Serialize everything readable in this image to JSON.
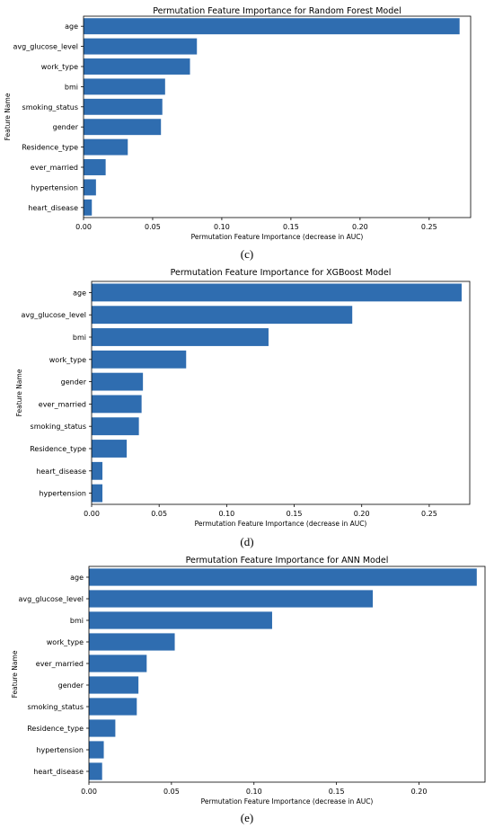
{
  "chart_data": [
    {
      "type": "bar",
      "orientation": "horizontal",
      "panel_label": "(c)",
      "title": "Permutation Feature Importance for Random Forest Model",
      "xlabel": "Permutation Feature Importance (decrease in AUC)",
      "ylabel": "Feature Name",
      "categories": [
        "age",
        "avg_glucose_level",
        "work_type",
        "bmi",
        "smoking_status",
        "gender",
        "Residence_type",
        "ever_married",
        "hypertension",
        "heart_disease"
      ],
      "values": [
        0.272,
        0.082,
        0.077,
        0.059,
        0.057,
        0.056,
        0.032,
        0.016,
        0.009,
        0.006
      ],
      "xlim": [
        0,
        0.28
      ],
      "xticks": [
        "0.00",
        "0.05",
        "0.10",
        "0.15",
        "0.20",
        "0.25"
      ],
      "bar_color": "#2f6db0",
      "grid": false
    },
    {
      "type": "bar",
      "orientation": "horizontal",
      "panel_label": "(d)",
      "title": "Permutation Feature Importance for XGBoost Model",
      "xlabel": "Permutation Feature Importance (decrease in AUC)",
      "ylabel": "Feature Name",
      "categories": [
        "age",
        "avg_glucose_level",
        "bmi",
        "work_type",
        "gender",
        "ever_married",
        "smoking_status",
        "Residence_type",
        "heart_disease",
        "hypertension"
      ],
      "values": [
        0.274,
        0.193,
        0.131,
        0.07,
        0.038,
        0.037,
        0.035,
        0.026,
        0.008,
        0.008
      ],
      "xlim": [
        0,
        0.28
      ],
      "xticks": [
        "0.00",
        "0.05",
        "0.10",
        "0.15",
        "0.20",
        "0.25"
      ],
      "bar_color": "#2f6db0",
      "grid": false
    },
    {
      "type": "bar",
      "orientation": "horizontal",
      "panel_label": "(e)",
      "title": "Permutation Feature Importance for ANN Model",
      "xlabel": "Permutation Feature Importance (decrease in AUC)",
      "ylabel": "Feature Name",
      "categories": [
        "age",
        "avg_glucose_level",
        "bmi",
        "work_type",
        "ever_married",
        "gender",
        "smoking_status",
        "Residence_type",
        "hypertension",
        "heart_disease"
      ],
      "values": [
        0.235,
        0.172,
        0.111,
        0.052,
        0.035,
        0.03,
        0.029,
        0.016,
        0.009,
        0.008
      ],
      "xlim": [
        0,
        0.24
      ],
      "xticks": [
        "0.00",
        "0.05",
        "0.10",
        "0.15",
        "0.20"
      ],
      "bar_color": "#2f6db0",
      "grid": false
    }
  ]
}
